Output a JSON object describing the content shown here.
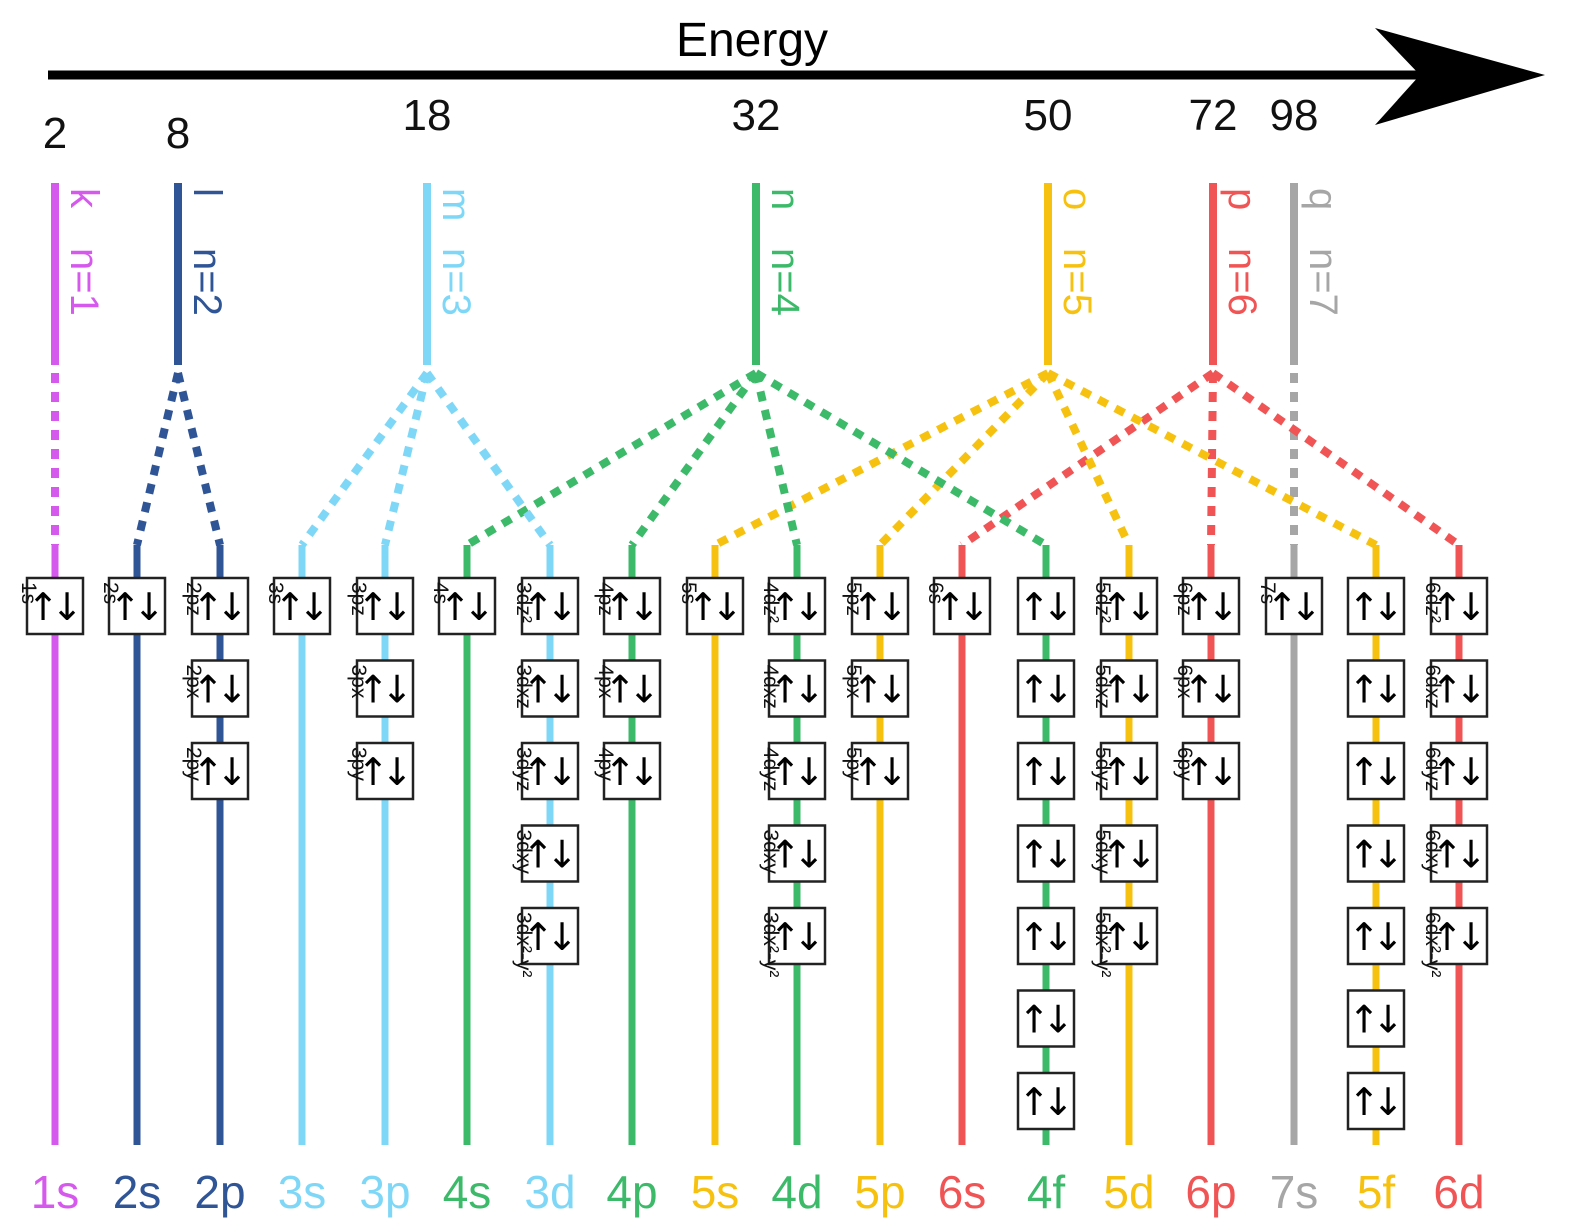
{
  "title": "Energy",
  "colors": {
    "n1": "#d659ee",
    "n2": "#2f5597",
    "n3": "#7fd7f7",
    "n4": "#3cba6a",
    "n5": "#f6c20f",
    "n6": "#f05454",
    "n7": "#a6a6a6",
    "box": "#222222"
  },
  "shells": [
    {
      "id": "n1",
      "letter": "k",
      "n_label": "n=1",
      "capacity": "2"
    },
    {
      "id": "n2",
      "letter": "l",
      "n_label": "n=2",
      "capacity": "8"
    },
    {
      "id": "n3",
      "letter": "m",
      "n_label": "n=3",
      "capacity": "18"
    },
    {
      "id": "n4",
      "letter": "n",
      "n_label": "n=4",
      "capacity": "32"
    },
    {
      "id": "n5",
      "letter": "o",
      "n_label": "n=5",
      "capacity": "50"
    },
    {
      "id": "n6",
      "letter": "p",
      "n_label": "n=6",
      "capacity": "72"
    },
    {
      "id": "n7",
      "letter": "q",
      "n_label": "n=7",
      "capacity": "98"
    }
  ],
  "arrow_up": "↑",
  "arrow_down": "↓",
  "subshells": [
    {
      "name": "1s",
      "shell": "n1",
      "orbitals": [
        "1s"
      ],
      "label_side": "left"
    },
    {
      "name": "2s",
      "shell": "n2",
      "orbitals": [
        "2s"
      ],
      "label_side": "left"
    },
    {
      "name": "2p",
      "shell": "n2",
      "orbitals": [
        "2pz",
        "2px",
        "2py"
      ],
      "label_side": "left"
    },
    {
      "name": "3s",
      "shell": "n3",
      "orbitals": [
        "3s"
      ],
      "label_side": "left"
    },
    {
      "name": "3p",
      "shell": "n3",
      "orbitals": [
        "3pz",
        "3px",
        "3py"
      ],
      "label_side": "left"
    },
    {
      "name": "4s",
      "shell": "n4",
      "orbitals": [
        "4s"
      ],
      "label_side": "left"
    },
    {
      "name": "3d",
      "shell": "n3",
      "orbitals": [
        "3dz²",
        "3dxz",
        "3dyz",
        "3dxy",
        "3dx²-y²"
      ],
      "label_side": "left"
    },
    {
      "name": "4p",
      "shell": "n4",
      "orbitals": [
        "4pz",
        "4px",
        "4py"
      ],
      "label_side": "left"
    },
    {
      "name": "5s",
      "shell": "n5",
      "orbitals": [
        "5s"
      ],
      "label_side": "left"
    },
    {
      "name": "4d",
      "shell": "n4",
      "orbitals": [
        "4dz²",
        "4dxz",
        "4dyz",
        "3dxy",
        "3dx²-y²"
      ],
      "label_side": "left"
    },
    {
      "name": "5p",
      "shell": "n5",
      "orbitals": [
        "5pz",
        "5px",
        "5py"
      ],
      "label_side": "left"
    },
    {
      "name": "6s",
      "shell": "n6",
      "orbitals": [
        "6s"
      ],
      "label_side": "left"
    },
    {
      "name": "4f",
      "shell": "n4",
      "orbitals": [
        "",
        "",
        "",
        "",
        "",
        "",
        ""
      ],
      "label_side": "none"
    },
    {
      "name": "5d",
      "shell": "n5",
      "orbitals": [
        "5dz²",
        "5dxz",
        "5dyz",
        "5dxy",
        "5dx²-y²"
      ],
      "label_side": "left"
    },
    {
      "name": "6p",
      "shell": "n6",
      "orbitals": [
        "6pz",
        "6px",
        "6py"
      ],
      "label_side": "left"
    },
    {
      "name": "7s",
      "shell": "n7",
      "orbitals": [
        "7s"
      ],
      "label_side": "left"
    },
    {
      "name": "5f",
      "shell": "n5",
      "orbitals": [
        "",
        "",
        "",
        "",
        "",
        "",
        ""
      ],
      "label_side": "none"
    },
    {
      "name": "6d",
      "shell": "n6",
      "orbitals": [
        "6dz²",
        "6dxz",
        "6dyz",
        "6dxy",
        "6dx²-y²"
      ],
      "label_side": "left"
    }
  ]
}
